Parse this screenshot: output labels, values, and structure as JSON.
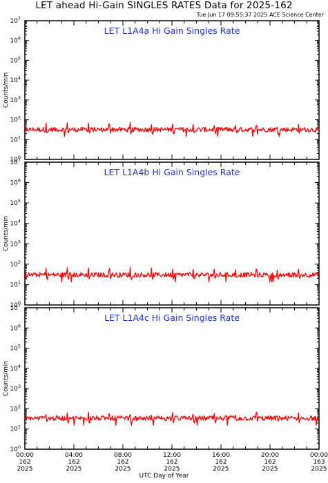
{
  "header": {
    "title": "LET ahead Hi-Gain SINGLES RATES Data for 2025-162",
    "timestamp": "Tue Jun 17 09:55:37 2025 ACE Science Center"
  },
  "colors": {
    "series": "#ff0000",
    "panel_title": "#1f2ce0",
    "axes": "#000000",
    "background": "#ffffff"
  },
  "chart_data": [
    {
      "type": "line",
      "title": "LET L1A4a Hi Gain Singles Rate",
      "ylabel": "Counts/min",
      "yscale": "log",
      "ylim": [
        1,
        10000000
      ],
      "ytick_exponents": [
        "0",
        "1",
        "2",
        "3",
        "4",
        "5",
        "6",
        "7"
      ],
      "series": [
        {
          "baseline": 32,
          "spikes": [
            42,
            72,
            65,
            70,
            60,
            66,
            62,
            58,
            55,
            60,
            52,
            58,
            50,
            55
          ]
        }
      ]
    },
    {
      "type": "line",
      "title": "LET L1A4b Hi Gain Singles Rate",
      "ylabel": "Counts/min",
      "yscale": "log",
      "ylim": [
        1,
        10000000
      ],
      "ytick_exponents": [
        "0",
        "1",
        "2",
        "3",
        "4",
        "5",
        "6",
        "7"
      ],
      "series": [
        {
          "baseline": 30,
          "spikes": [
            50,
            70,
            62,
            66,
            58,
            64,
            60,
            56,
            54,
            58,
            50,
            56,
            48,
            52
          ]
        }
      ]
    },
    {
      "type": "line",
      "title": "LET L1A4c Hi Gain Singles Rate",
      "ylabel": "Counts/min",
      "yscale": "log",
      "ylim": [
        1,
        10000000
      ],
      "ytick_exponents": [
        "0",
        "1",
        "2",
        "3",
        "4",
        "5",
        "6",
        "7"
      ],
      "series": [
        {
          "baseline": 34,
          "spikes": [
            55,
            60,
            58,
            62,
            56,
            60,
            55,
            64,
            52,
            60,
            50,
            66,
            50,
            62
          ]
        }
      ]
    }
  ],
  "x_axis": {
    "label": "UTC Day of Year",
    "ticks": [
      {
        "time": "00:00",
        "day": "162",
        "year": "2025"
      },
      {
        "time": "04:00",
        "day": "162",
        "year": "2025"
      },
      {
        "time": "08:00",
        "day": "162",
        "year": "2025"
      },
      {
        "time": "12:00",
        "day": "162",
        "year": "2025"
      },
      {
        "time": "16:00",
        "day": "162",
        "year": "2025"
      },
      {
        "time": "20:00",
        "day": "162",
        "year": "2025"
      },
      {
        "time": "00:00",
        "day": "163",
        "year": "2025"
      }
    ]
  }
}
